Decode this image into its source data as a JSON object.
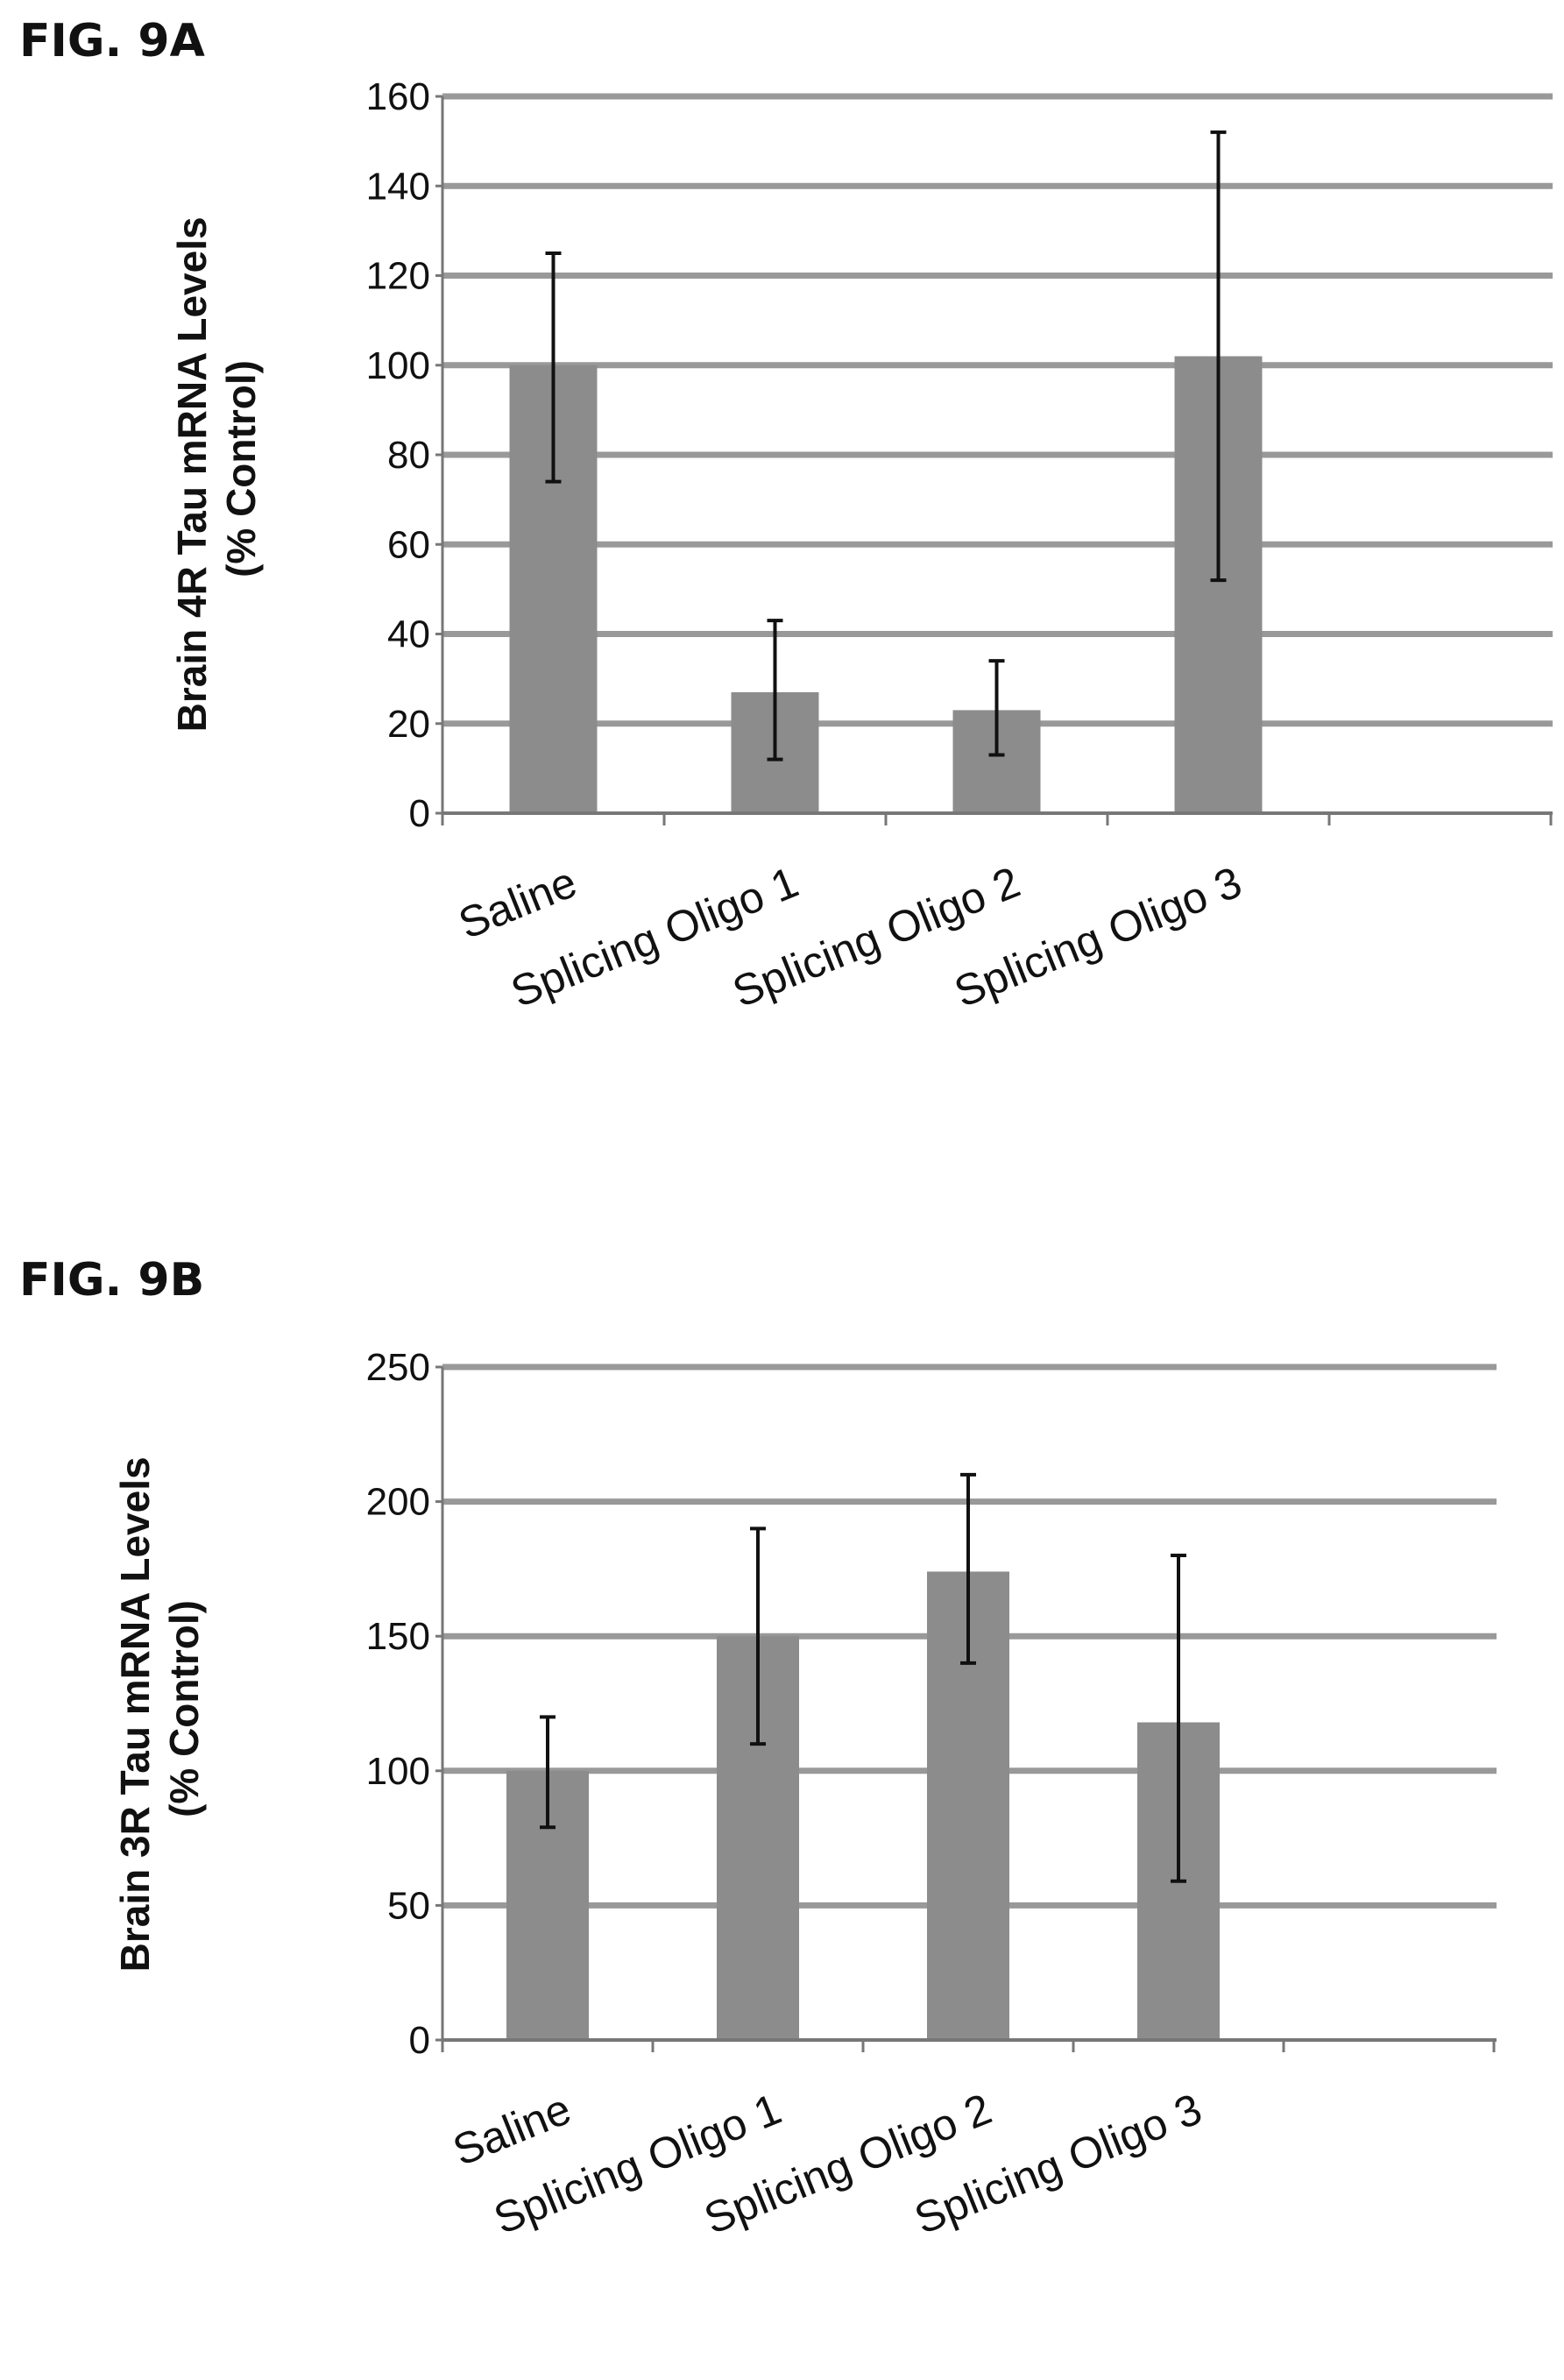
{
  "chart_data": [
    {
      "figure_label": "FIG. 9A",
      "type": "bar",
      "ylabel_lines": [
        "Brain 4R Tau mRNA Levels",
        "(% Control)"
      ],
      "categories": [
        "Saline",
        "Splicing Oligo 1",
        "Splicing Oligo 2",
        "Splicing Oligo 3"
      ],
      "values": [
        100,
        27,
        23,
        102
      ],
      "error_low": [
        74,
        12,
        13,
        52
      ],
      "error_high": [
        125,
        43,
        34,
        152
      ],
      "ylim": [
        0,
        160
      ],
      "yticks": [
        0,
        20,
        40,
        60,
        80,
        100,
        120,
        140,
        160
      ],
      "grid": true,
      "bar_color": "#8c8c8c",
      "gridline_color": "#999999"
    },
    {
      "figure_label": "FIG. 9B",
      "type": "bar",
      "ylabel_lines": [
        "Brain 3R Tau mRNA Levels",
        "(% Control)"
      ],
      "categories": [
        "Saline",
        "Splicing Oligo 1",
        "Splicing Oligo 2",
        "Splicing Oligo 3"
      ],
      "values": [
        100,
        150,
        174,
        118
      ],
      "error_low": [
        79,
        110,
        140,
        59
      ],
      "error_high": [
        120,
        190,
        210,
        180
      ],
      "ylim": [
        0,
        250
      ],
      "yticks": [
        0,
        50,
        100,
        150,
        200,
        250
      ],
      "grid": true,
      "bar_color": "#8c8c8c",
      "gridline_color": "#999999"
    }
  ]
}
